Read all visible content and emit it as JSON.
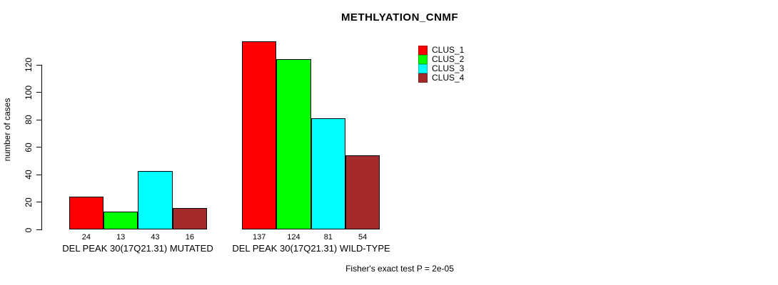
{
  "chart_data": {
    "type": "bar",
    "title": "METHLYATION_CNMF",
    "ylabel": "number of cases",
    "xlabel": "",
    "categories": [
      "DEL PEAK 30(17Q21.31) MUTATED",
      "DEL PEAK 30(17Q21.31) WILD-TYPE"
    ],
    "series": [
      {
        "name": "CLUS_1",
        "color": "#FF0000",
        "values": [
          24,
          137
        ]
      },
      {
        "name": "CLUS_2",
        "color": "#00FF00",
        "values": [
          13,
          124
        ]
      },
      {
        "name": "CLUS_3",
        "color": "#00FFFF",
        "values": [
          43,
          81
        ]
      },
      {
        "name": "CLUS_4",
        "color": "#A52A2A",
        "values": [
          16,
          54
        ]
      }
    ],
    "yticks": [
      0,
      20,
      40,
      60,
      80,
      100,
      120
    ],
    "ylim": [
      0,
      137
    ],
    "grid": false,
    "legend_position": "top-right",
    "value_labels_shown": true,
    "annotation": "Fisher's exact test P = 2e-05"
  }
}
